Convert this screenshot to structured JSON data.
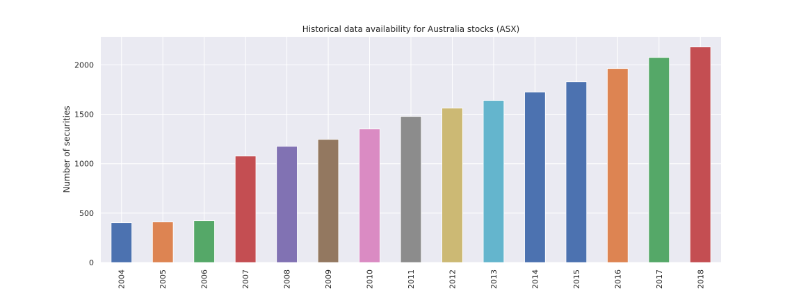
{
  "chart_data": {
    "type": "bar",
    "title": "Historical data availability for Australia stocks (ASX)",
    "xlabel": "",
    "ylabel": "Number of securities",
    "categories": [
      "2004",
      "2005",
      "2006",
      "2007",
      "2008",
      "2009",
      "2010",
      "2011",
      "2012",
      "2013",
      "2014",
      "2015",
      "2016",
      "2017",
      "2018"
    ],
    "values": [
      403,
      410,
      424,
      1077,
      1176,
      1246,
      1351,
      1478,
      1562,
      1640,
      1724,
      1829,
      1963,
      2075,
      2181
    ],
    "colors": [
      "#4c72b0",
      "#dd8452",
      "#55a868",
      "#c44e52",
      "#8172b3",
      "#937860",
      "#da8bc3",
      "#8c8c8c",
      "#ccb974",
      "#64b5cd",
      "#4c72b0",
      "#4c72b0",
      "#dd8452",
      "#55a868",
      "#c44e52"
    ],
    "ylim": [
      0,
      2284
    ],
    "yticks": [
      0,
      500,
      1000,
      1500,
      2000
    ],
    "grid": true,
    "background": "#eaeaf2"
  }
}
